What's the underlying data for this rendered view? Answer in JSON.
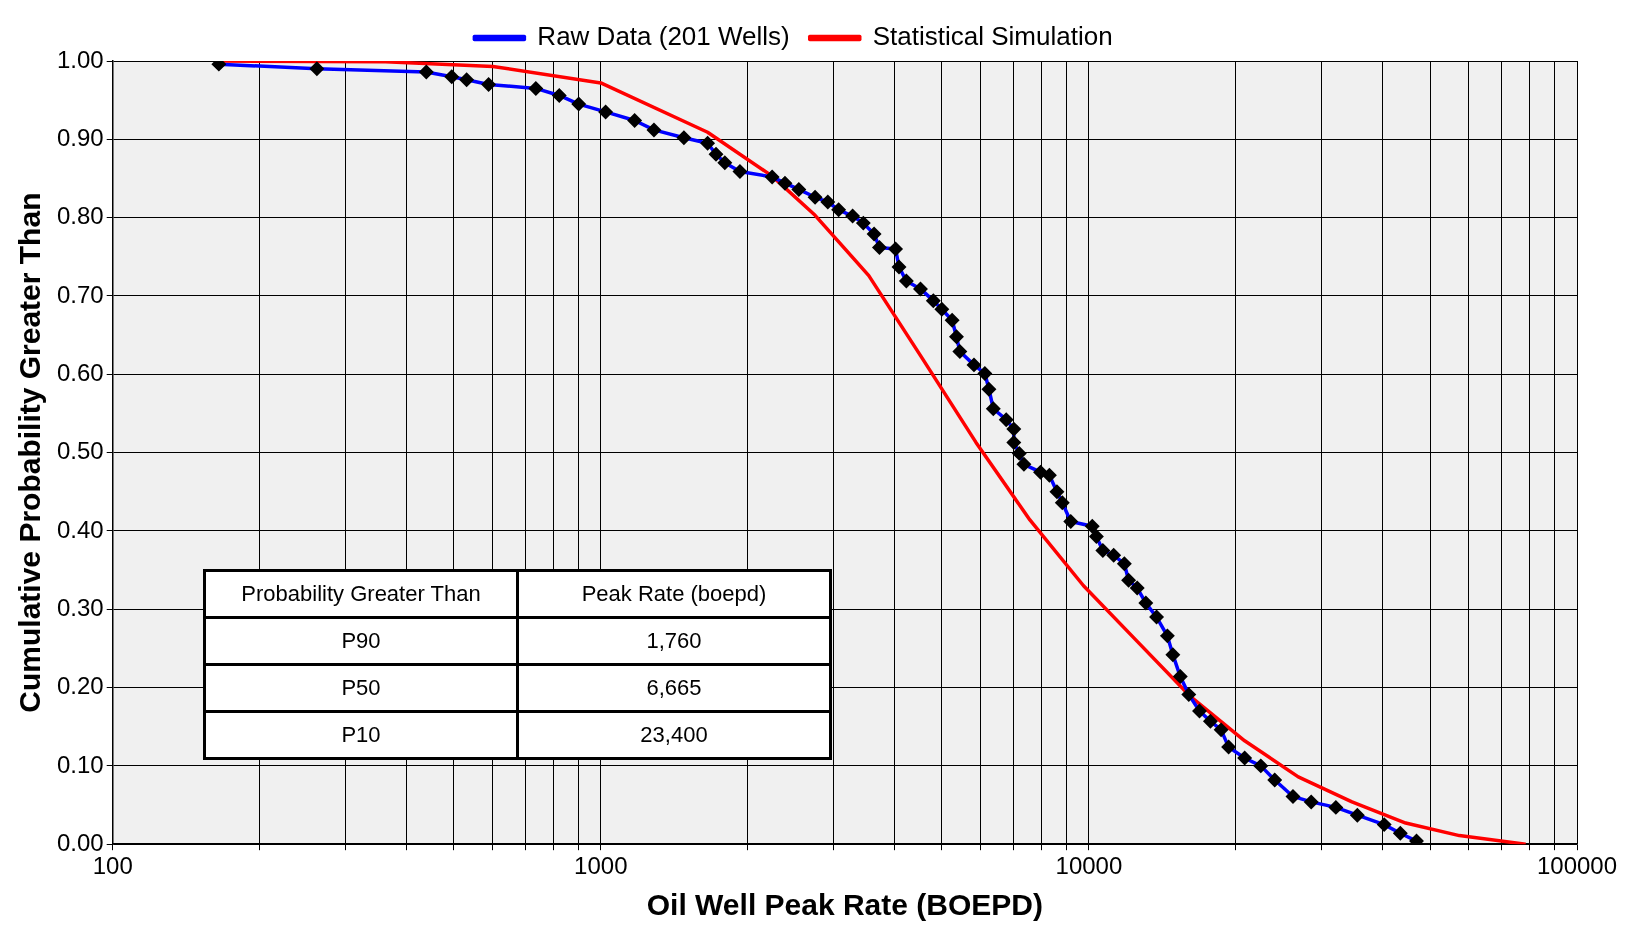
{
  "chart_data": {
    "type": "line",
    "xlabel": "Oil Well Peak Rate (BOEPD)",
    "ylabel": "Cumulative Probability Greater Than",
    "log": "x",
    "xlim": [
      100,
      100000
    ],
    "xticks": [
      100,
      {
        "value": 200,
        "label": null
      },
      {
        "value": 300,
        "label": null
      },
      {
        "value": 400,
        "label": null
      },
      {
        "value": 500,
        "label": null
      },
      {
        "value": 600,
        "label": null
      },
      {
        "value": 700,
        "label": null
      },
      {
        "value": 800,
        "label": null
      },
      {
        "value": 900,
        "label": null
      },
      1000,
      {
        "value": 2000,
        "label": null
      },
      {
        "value": 3000,
        "label": null
      },
      {
        "value": 4000,
        "label": null
      },
      {
        "value": 5000,
        "label": null
      },
      {
        "value": 6000,
        "label": null
      },
      {
        "value": 7000,
        "label": null
      },
      {
        "value": 8000,
        "label": null
      },
      {
        "value": 9000,
        "label": null
      },
      10000,
      {
        "value": 20000,
        "label": null
      },
      {
        "value": 30000,
        "label": null
      },
      {
        "value": 40000,
        "label": null
      },
      {
        "value": 50000,
        "label": null
      },
      {
        "value": 60000,
        "label": null
      },
      {
        "value": 70000,
        "label": null
      },
      {
        "value": 80000,
        "label": null
      },
      {
        "value": 90000,
        "label": null
      },
      100000
    ],
    "ylim": [
      0,
      1
    ],
    "yticks": [
      {
        "value": 0,
        "label": "0.00"
      },
      {
        "value": 0.1,
        "label": "0.10"
      },
      {
        "value": 0.2,
        "label": "0.20"
      },
      {
        "value": 0.3,
        "label": "0.30"
      },
      {
        "value": 0.4,
        "label": "0.40"
      },
      {
        "value": 0.5,
        "label": "0.50"
      },
      {
        "value": 0.6,
        "label": "0.60"
      },
      {
        "value": 0.7,
        "label": "0.70"
      },
      {
        "value": 0.8,
        "label": "0.80"
      },
      {
        "value": 0.9,
        "label": "0.90"
      },
      {
        "value": 1,
        "label": "1.00"
      }
    ],
    "grid": true,
    "legend": "top",
    "line_style": "solid",
    "series": [
      {
        "name": "Raw Data (201 Wells)",
        "color": "#0000ff",
        "marker": "diamond",
        "x": [
          165,
          262,
          439,
          495,
          531,
          589,
          736,
          822,
          901,
          1023,
          1173,
          1285,
          1480,
          1655,
          1722,
          1795,
          1928,
          2244,
          2384,
          2545,
          2748,
          2918,
          3071,
          3280,
          3450,
          3630,
          3723,
          4017,
          4083,
          4227,
          4518,
          4800,
          4997,
          5246,
          5354,
          5440,
          5815,
          6121,
          6240,
          6370,
          6770,
          7017,
          7017,
          7200,
          7360,
          7960,
          8300,
          8600,
          8820,
          9180,
          10160,
          10360,
          10680,
          11240,
          11820,
          12060,
          12560,
          13080,
          13760,
          14480,
          14860,
          15390,
          16020,
          16850,
          17740,
          18660,
          19330,
          20850,
          22500,
          24030,
          26190,
          28540,
          32060,
          35480,
          40270,
          43450,
          46900
        ],
        "values": [
          0.996,
          0.99,
          0.986,
          0.98,
          0.976,
          0.97,
          0.965,
          0.956,
          0.945,
          0.935,
          0.924,
          0.912,
          0.902,
          0.895,
          0.881,
          0.87,
          0.859,
          0.852,
          0.844,
          0.836,
          0.826,
          0.82,
          0.81,
          0.802,
          0.793,
          0.779,
          0.762,
          0.76,
          0.737,
          0.719,
          0.709,
          0.694,
          0.683,
          0.669,
          0.648,
          0.629,
          0.612,
          0.601,
          0.581,
          0.556,
          0.542,
          0.53,
          0.513,
          0.499,
          0.485,
          0.475,
          0.471,
          0.45,
          0.436,
          0.412,
          0.406,
          0.393,
          0.375,
          0.369,
          0.358,
          0.337,
          0.327,
          0.308,
          0.29,
          0.266,
          0.242,
          0.214,
          0.191,
          0.17,
          0.157,
          0.146,
          0.124,
          0.11,
          0.1,
          0.082,
          0.061,
          0.054,
          0.047,
          0.037,
          0.025,
          0.014,
          0.004
        ]
      },
      {
        "name": "Statistical Simulation",
        "color": "#ff0000",
        "marker": "none",
        "x": [
          165,
          362,
          601,
          1000,
          1655,
          2244,
          2748,
          3540,
          4560,
          5870,
          7570,
          9750,
          12560,
          16180,
          20850,
          26850,
          34590,
          44570,
          57410,
          78500
        ],
        "values": [
          1.0,
          0.999,
          0.993,
          0.972,
          0.909,
          0.853,
          0.803,
          0.726,
          0.62,
          0.513,
          0.414,
          0.33,
          0.259,
          0.188,
          0.132,
          0.086,
          0.054,
          0.027,
          0.011,
          0.0
        ]
      }
    ],
    "annotations": [
      "Probability Greater Than",
      "Peak Rate (boepd)",
      "P90",
      "1,760",
      "P50",
      "6,665",
      "P10",
      "23,400"
    ]
  }
}
